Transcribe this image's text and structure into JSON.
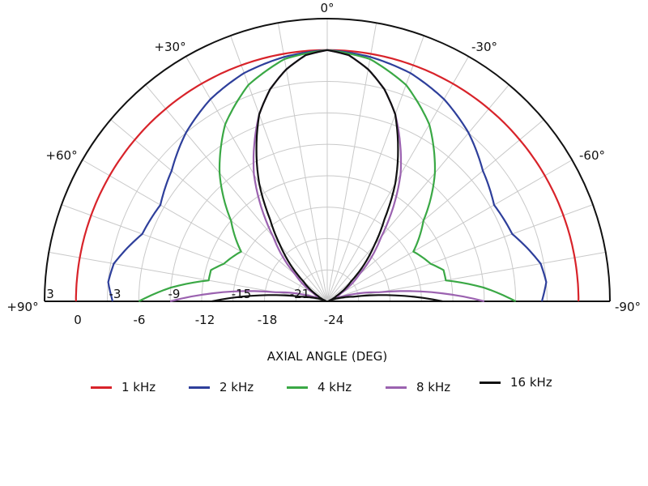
{
  "chart_data": {
    "type": "polar",
    "subtype": "half-polar directivity plot",
    "xlabel": "AXIAL ANGLE (DEG)",
    "angle_ticks": [
      "0°",
      "+30°",
      "-30°",
      "+60°",
      "-60°",
      "+90°",
      "-90°"
    ],
    "radial_ticks": [
      "3",
      "0",
      "-3",
      "-6",
      "-9",
      "-12",
      "-15",
      "-18",
      "-21",
      "-24"
    ],
    "rlim": [
      -24,
      3
    ],
    "grid": true,
    "legend_position": "bottom",
    "colors": {
      "1 kHz": "#d8232a",
      "2 kHz": "#2e3f9b",
      "4 kHz": "#3aa845",
      "8 kHz": "#9b62b0",
      "16 kHz": "#111111"
    },
    "series": [
      {
        "name": "1 kHz",
        "angle": [
          0,
          10,
          20,
          30,
          40,
          50,
          60,
          70,
          80,
          90
        ],
        "level_db": [
          0,
          0,
          0,
          0,
          0,
          0,
          0,
          0,
          0,
          0
        ]
      },
      {
        "name": "2 kHz",
        "angle": [
          0,
          10,
          20,
          30,
          40,
          50,
          60,
          70,
          80,
          85,
          90
        ],
        "level_db": [
          0,
          -0.3,
          -0.8,
          -1.7,
          -3,
          -4.6,
          -5.6,
          -5.2,
          -3.3,
          -3,
          -3.5
        ]
      },
      {
        "name": "4 kHz",
        "angle": [
          0,
          10,
          20,
          30,
          40,
          50,
          60,
          70,
          75,
          80,
          85,
          90
        ],
        "level_db": [
          0,
          -0.5,
          -2,
          -4.5,
          -8,
          -12,
          -14.5,
          -13.5,
          -12.5,
          -12.5,
          -9,
          -6
        ]
      },
      {
        "name": "8 kHz",
        "angle": [
          0,
          5,
          10,
          15,
          20,
          25,
          30,
          35,
          40,
          50,
          60,
          70,
          80,
          85,
          90
        ],
        "level_db": [
          0,
          -0.4,
          -1.5,
          -3,
          -5,
          -7.5,
          -10,
          -13,
          -16,
          -20,
          -22.5,
          -23.5,
          -19,
          -14,
          -9
        ]
      },
      {
        "name": "16 kHz",
        "angle": [
          0,
          5,
          10,
          15,
          20,
          25,
          30,
          35,
          40,
          50,
          60,
          70,
          80,
          85,
          90
        ],
        "level_db": [
          0,
          -0.4,
          -1.5,
          -3,
          -5,
          -8,
          -11,
          -14.5,
          -17,
          -21,
          -23,
          -23.8,
          -21.5,
          -17.5,
          -13
        ]
      }
    ]
  }
}
